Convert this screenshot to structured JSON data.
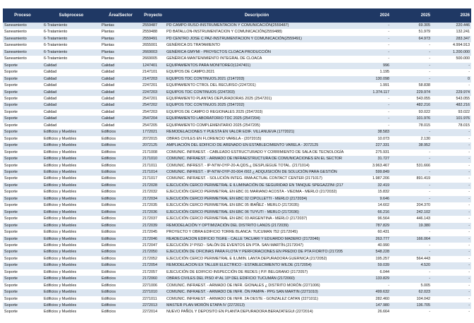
{
  "table": {
    "header": [
      "Proceso",
      "Subproceso",
      "Área/Sector",
      "Proyecto",
      "Descripción",
      "2024",
      "2025",
      "2026"
    ],
    "rows": [
      [
        "Saneamiento",
        "6-Tratamiento",
        "Plantas",
        "2559487",
        "PD CAMPO RUSO-INSTRUMENTACION Y COMUNICACIÓN(2559487)",
        "-",
        "69.305",
        "220.446"
      ],
      [
        "Saneamiento",
        "6-Tratamiento",
        "Plantas",
        "2559488",
        "PD BATALLON-INSTRUMENTACION Y COMUNICACIÓN(2559488)",
        "-",
        "51.979",
        "132.241"
      ],
      [
        "Saneamiento",
        "6-Tratamiento",
        "Plantas",
        "2559491",
        "PD CENTRO JOSE C PAZ-INSTRUMENTACION Y COMUNICACIÓN(2559491)",
        "-",
        "64.973",
        "283.347"
      ],
      [
        "Saneamiento",
        "6-Tratamiento",
        "Plantas",
        "2655001",
        "GENÉRICA DS TRATAMIENTO",
        "-",
        "-",
        "4.994.913"
      ],
      [
        "Saneamiento",
        "6-Tratamiento",
        "Plantas",
        "2669003",
        "GENÉRICA GMYMI - PROYECTOS CLOACA PRODUCCIÓN",
        "-",
        "-",
        "1.200.000"
      ],
      [
        "Saneamiento",
        "6-Tratamiento",
        "Plantas",
        "2669005",
        "GENÉRICA MANTENIMIENTO INTEGRAL DE CLOACA",
        "-",
        "-",
        "500.000"
      ],
      [
        "Soporte",
        "Calidad",
        "Calidad",
        "1247401",
        "EQUIPAMIENTOS PARA MONITOREO(1247401)",
        "996",
        "-",
        "-"
      ],
      [
        "Soporte",
        "Calidad",
        "Calidad",
        "2147101",
        "EQUIPOS DE CAMPO.2021",
        "1.195",
        "-",
        "-"
      ],
      [
        "Soporte",
        "Calidad",
        "Calidad",
        "2147203",
        "EQUIPOS TDC CONTINUOS.2021 (2147203)",
        "130.098",
        "-",
        "0"
      ],
      [
        "Soporte",
        "Calidad",
        "Calidad",
        "2247201",
        "EQUIPAMIENTO CTROL DEL RECURSO (2247201)",
        "1.991",
        "58.838",
        "-"
      ],
      [
        "Soporte",
        "Calidad",
        "Calidad",
        "2247203",
        "EQUIPOS TDC CONTINUOS (2247203)",
        "1.374.117",
        "229.974",
        "229.974"
      ],
      [
        "Soporte",
        "Calidad",
        "Calidad",
        "2547201",
        "EQUIPAMIENTO PLANTAS DEPURADORAS 2025 (2547201)",
        "-",
        "543.055",
        "543.055"
      ],
      [
        "Soporte",
        "Calidad",
        "Calidad",
        "2547202",
        "EQUIPOS TDC CONTINUOS 2025 (2547202)",
        "-",
        "482.216",
        "482.216"
      ],
      [
        "Soporte",
        "Calidad",
        "Calidad",
        "2547203",
        "EQUIPOS DE CAMPO D REGIONALES 2025 (2547203)",
        "-",
        "93.022",
        "93.022"
      ],
      [
        "Soporte",
        "Calidad",
        "Calidad",
        "2547204",
        "EQUIPAMIENTO LABORATORIO TDC 2025 (2547204)",
        "-",
        "101.976",
        "101.976"
      ],
      [
        "Soporte",
        "Calidad",
        "Calidad",
        "2547205",
        "EQUIPAMIENTO COMPLEMENTARIO 2025 (2547205)",
        "-",
        "78.015",
        "78.015"
      ],
      [
        "Soporte",
        "Edificios y Muebles",
        "Edificios",
        "1772021",
        "REMODELACIONES Y PUESTA EN VALOR EDIF. VILLANUEVA (1772021)",
        "38.583",
        "-",
        "-"
      ],
      [
        "Soporte",
        "Edificios y Muebles",
        "Edificios",
        "2072015",
        "OBRAS CIVILES EN FLORENCIO VARELA - (2072015)",
        "10.073",
        "2.130",
        "-"
      ],
      [
        "Soporte",
        "Edificios y Muebles",
        "Edificios",
        "2072125",
        "AMPLIACIÓN DEL EDIFICIO DE ARENADO EN ESTABLECIMIENTO VARELA - 2072125",
        "227.331",
        "38.952",
        "-"
      ],
      [
        "Soporte",
        "Edificios y Muebles",
        "Edificios",
        "2171008",
        "COMUNIC. INFRAEST. - CABLEADO ESTRUCTURADO Y CORRIMIENTO DE SALA DE TECNOLOGÍA",
        "275.931",
        "-",
        "-"
      ],
      [
        "Soporte",
        "Edificios y Muebles",
        "Edificios",
        "2171010",
        "COMUNIC. INFRAEST. - ARMADO DE INFRAESTRUCTURA DE COMUNICACIONES EN EL SECTOR",
        "31.727",
        "-",
        "-"
      ],
      [
        "Soporte",
        "Edificios y Muebles",
        "Edificios",
        "2171011",
        "COMUNIC. INFREST. - IP-NTW-OYP-20-A.QDS.¿ DESPLIEGUE TOTAL. (2171014)",
        "3.963.467",
        "531.666",
        "-"
      ],
      [
        "Soporte",
        "Edificios y Muebles",
        "Edificios",
        "2171014",
        "COMUNIC. INFREST. - IP-NTW-OYP-20-004 /002 ¿ ADQUISICIÓN DE SOLUCIÓN PARA GESTIÓN",
        "599.849",
        "-",
        "-"
      ],
      [
        "Soporte",
        "Edificios y Muebles",
        "Edificios",
        "2171017",
        "COMUNIC. INFRAEST. - SOLUCIÓN INTEG. RMA ACTUAL CONTACT CENTER (2171017)",
        "1.987.206",
        "891.419",
        "-"
      ],
      [
        "Soporte",
        "Edificios y Muebles",
        "Edificios",
        "2172028",
        "EJECUCIÓN CERCO PERIMETRAL E ILUMINACIÓN DE SEGURIDAD EN TANQUE SPEGAZZINI (217",
        "32.419",
        "-",
        "-"
      ],
      [
        "Soporte",
        "Edificios y Muebles",
        "Edificios",
        "2172032",
        "EJECUCIÓN CERCO PERIMETRAL EN EBC 01 MARIANO ACOSTA - VIEDMA - MERLO (2172032)",
        "15.832",
        "-",
        "-"
      ],
      [
        "Soporte",
        "Edificios y Muebles",
        "Edificios",
        "2172034",
        "EJECUCIÓN CERCO PERIMETRAL EN EBC 02 CIPOLLETTI - MERLO (2172034)",
        "9.646",
        "-",
        "-"
      ],
      [
        "Soporte",
        "Edificios y Muebles",
        "Edificios",
        "2172035",
        "EJECUCIÓN CERCO PERIMETRAL EN EBC 05 IBAÑEZ - MERLO (2172035)",
        "14.602",
        "204.370",
        "-"
      ],
      [
        "Soporte",
        "Edificios y Muebles",
        "Edificios",
        "2172036",
        "EJECUCIÓN CERCO PERIMETRAL EN EBC 06 TUYUTI - MERLO (2172036)",
        "66.216",
        "242.102",
        "-"
      ],
      [
        "Soporte",
        "Edificios y Muebles",
        "Edificios",
        "2172037",
        "EJECUCIÓN CERCO PERIMETRAL EN EBC 03 ARGENTINA - MERLO (2172037)",
        "96.564",
        "446.143",
        "-"
      ],
      [
        "Soporte",
        "Edificios y Muebles",
        "Edificios",
        "2172039",
        "REMODELACIÓN Y OPTIMIZACIÓN DEL DISTRITO LANÚS (2172039)",
        "787.829",
        "19.380",
        "-"
      ],
      [
        "Soporte",
        "Edificios y Muebles",
        "Edificios",
        "2172045",
        "PROYECTO Y OBRA EDIFICIO TORRE BLANCA: TUCUMAN 752 (2172045)",
        "60.431",
        "-",
        "-"
      ],
      [
        "Soporte",
        "Edificios y Muebles",
        "Edificios",
        "2172046",
        "READECUACION EDIFICIO TIGRE - CALLE TACUARI Y EDUARDO MADERO (2172046)",
        "263.777",
        "166.064",
        "-"
      ],
      [
        "Soporte",
        "Edificios y Muebles",
        "Edificios",
        "2172047",
        "EJECUCIÓN 1º PISO - SALÓN DE EVENTOS EN PTA. SAN MARTÍN.(2172047)",
        "40.990",
        "-",
        "-"
      ],
      [
        "Soporte",
        "Edificios y Muebles",
        "Edificios",
        "2172050",
        "EJECUCIÓN DE OFICINAS PARA FLOTA Y PERFORACIONES EN PREDIO DE PTA FIORITO (217205",
        "548.228",
        "-",
        "-"
      ],
      [
        "Soporte",
        "Edificios y Muebles",
        "Edificios",
        "2172052",
        "EJECUCIÓN CERCO PERIMETRAL E ILUMIN. LANTA DEPURADORA GUERNICA (2172052)",
        "195.257",
        "564.443",
        "-"
      ],
      [
        "Soporte",
        "Edificios y Muebles",
        "Edificios",
        "2172054",
        "REMODELACION EX TALLER ELECTRICO - ESTABLECIMIENTO WILDE (2172054)",
        "59.039",
        "4.520",
        "-"
      ],
      [
        "Soporte",
        "Edificios y Muebles",
        "Edificios",
        "2172057",
        "EJECUCIÓN DE EDIFICIO INSPECCIÓN DE REDES ( P.P. BELGRANO (2172057)",
        "6.044",
        "-",
        "-"
      ],
      [
        "Soporte",
        "Edificios y Muebles",
        "Edificios",
        "2172060",
        "OBRAS CIVILES DEL PISO 4º AL 10º DEL EDIFICIO TUCUMÁN (2172060)",
        "133.829",
        "-",
        "-"
      ],
      [
        "Soporte",
        "Edificios y Muebles",
        "Edificios",
        "2271006",
        "COMUNIC. INFRAEST. - ARMADO DE INFR. GIONALES ¿ DISTRITO MORÓN (2271006)",
        "-",
        "5.005",
        "-"
      ],
      [
        "Soporte",
        "Edificios y Muebles",
        "Edificios",
        "2271010",
        "COMUNIC. INFRAEST. - ARMADO DE INFR. ÓN PAMPA - PPG SAN MARTIN (2271010)",
        "499.632",
        "62.023",
        "-"
      ],
      [
        "Soporte",
        "Edificios y Muebles",
        "Edificios",
        "2271011",
        "COMUNIC. INFRAEST. - ARMADO DE INFR. 2A OESTE - GONZALEZ CATAN (2271011)",
        "282.460",
        "104.042",
        "-"
      ],
      [
        "Soporte",
        "Edificios y Muebles",
        "Edificios",
        "2272013",
        "MASTER PLAN MORÓN ETAPA IV (2272013)",
        "147.980",
        "136.705",
        "-"
      ],
      [
        "Soporte",
        "Edificios y Muebles",
        "Edificios",
        "2272014",
        "NUEVO PAÑOL Y DEPOSITO EN PLANTA DEPURADORA BERAZATEGUI (2272014)",
        "26.664",
        "-",
        "-"
      ]
    ]
  }
}
